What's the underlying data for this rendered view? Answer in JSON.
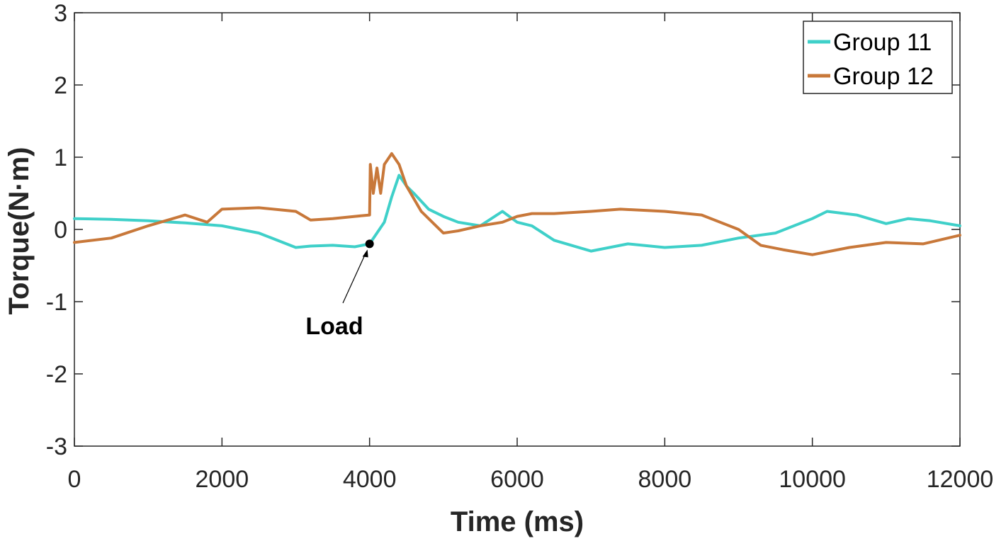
{
  "chart_data": {
    "type": "line",
    "title": "",
    "xlabel": "Time (ms)",
    "ylabel": "Torque(N·m)",
    "xlim": [
      0,
      12000
    ],
    "ylim": [
      -3,
      3
    ],
    "xticks": [
      0,
      2000,
      4000,
      6000,
      8000,
      10000,
      12000
    ],
    "xtick_labels": [
      "0",
      "2000",
      "4000",
      "6000",
      "8000",
      "10000",
      "12000"
    ],
    "yticks": [
      -3,
      -2,
      -1,
      0,
      1,
      2,
      3
    ],
    "ytick_labels": [
      "-3",
      "-2",
      "-1",
      "0",
      "1",
      "2",
      "3"
    ],
    "grid": false,
    "legend_position": "top-right",
    "series": [
      {
        "name": "Group 11",
        "color": "#3fd0c9",
        "points": [
          [
            0,
            0.15
          ],
          [
            500,
            0.14
          ],
          [
            1000,
            0.12
          ],
          [
            1500,
            0.09
          ],
          [
            2000,
            0.05
          ],
          [
            2500,
            -0.05
          ],
          [
            3000,
            -0.25
          ],
          [
            3200,
            -0.23
          ],
          [
            3500,
            -0.22
          ],
          [
            3800,
            -0.24
          ],
          [
            4000,
            -0.2
          ],
          [
            4200,
            0.1
          ],
          [
            4300,
            0.45
          ],
          [
            4400,
            0.75
          ],
          [
            4500,
            0.6
          ],
          [
            4600,
            0.5
          ],
          [
            4800,
            0.28
          ],
          [
            5000,
            0.18
          ],
          [
            5200,
            0.1
          ],
          [
            5500,
            0.05
          ],
          [
            5800,
            0.25
          ],
          [
            6000,
            0.1
          ],
          [
            6200,
            0.05
          ],
          [
            6500,
            -0.15
          ],
          [
            7000,
            -0.3
          ],
          [
            7500,
            -0.2
          ],
          [
            8000,
            -0.25
          ],
          [
            8500,
            -0.22
          ],
          [
            9000,
            -0.12
          ],
          [
            9500,
            -0.05
          ],
          [
            10000,
            0.15
          ],
          [
            10200,
            0.25
          ],
          [
            10600,
            0.2
          ],
          [
            11000,
            0.08
          ],
          [
            11300,
            0.15
          ],
          [
            11600,
            0.12
          ],
          [
            12000,
            0.05
          ]
        ]
      },
      {
        "name": "Group 12",
        "color": "#c8783a",
        "points": [
          [
            0,
            -0.18
          ],
          [
            500,
            -0.12
          ],
          [
            1000,
            0.05
          ],
          [
            1500,
            0.2
          ],
          [
            1800,
            0.1
          ],
          [
            2000,
            0.28
          ],
          [
            2500,
            0.3
          ],
          [
            3000,
            0.25
          ],
          [
            3200,
            0.13
          ],
          [
            3500,
            0.15
          ],
          [
            3800,
            0.18
          ],
          [
            4000,
            0.2
          ],
          [
            4010,
            0.9
          ],
          [
            4050,
            0.5
          ],
          [
            4100,
            0.85
          ],
          [
            4150,
            0.5
          ],
          [
            4200,
            0.9
          ],
          [
            4300,
            1.05
          ],
          [
            4400,
            0.9
          ],
          [
            4500,
            0.6
          ],
          [
            4700,
            0.25
          ],
          [
            4900,
            0.05
          ],
          [
            5000,
            -0.05
          ],
          [
            5200,
            -0.02
          ],
          [
            5500,
            0.05
          ],
          [
            5800,
            0.1
          ],
          [
            6000,
            0.18
          ],
          [
            6200,
            0.22
          ],
          [
            6500,
            0.22
          ],
          [
            7000,
            0.25
          ],
          [
            7400,
            0.28
          ],
          [
            8000,
            0.25
          ],
          [
            8500,
            0.2
          ],
          [
            9000,
            0.0
          ],
          [
            9300,
            -0.22
          ],
          [
            9600,
            -0.28
          ],
          [
            10000,
            -0.35
          ],
          [
            10500,
            -0.25
          ],
          [
            11000,
            -0.18
          ],
          [
            11500,
            -0.2
          ],
          [
            12000,
            -0.08
          ]
        ]
      }
    ],
    "annotations": [
      {
        "text": "Load",
        "x": 4000,
        "y": -0.2
      }
    ]
  }
}
